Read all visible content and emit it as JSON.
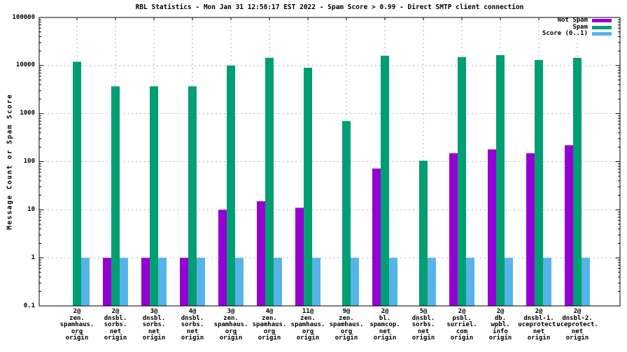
{
  "title": "RBL Statistics - Mon Jan 31 12:58:17 EST 2022 - Spam Score > 0.99 - Direct SMTP client connection",
  "y_axis_title": "Message Count or Spam Score",
  "colors": {
    "not_spam": "#9400d3",
    "spam": "#009e73",
    "score": "#56b4e9",
    "grid": "#b2b2b2",
    "frame": "#000000"
  },
  "chart_data": {
    "type": "bar",
    "title": "RBL Statistics - Mon Jan 31 12:58:17 EST 2022 - Spam Score > 0.99 - Direct SMTP client connection",
    "ylabel": "Message Count or Spam Score",
    "xlabel": "",
    "y_scale": "log",
    "ylim": [
      0.1,
      100000
    ],
    "y_tick_labels": [
      "100000",
      "10000",
      "1000",
      "100",
      "10",
      "1",
      "0.1"
    ],
    "grid": true,
    "legend_position": "top-right",
    "categories": [
      [
        "2@",
        "zen.",
        "spamhaus.",
        "org",
        "origin"
      ],
      [
        "2@",
        "dnsbl.",
        "sorbs.",
        "net",
        "origin"
      ],
      [
        "3@",
        "dnsbl.",
        "sorbs.",
        "net",
        "origin"
      ],
      [
        "4@",
        "dnsbl.",
        "sorbs.",
        "net",
        "origin"
      ],
      [
        "3@",
        "zen.",
        "spamhaus.",
        "org",
        "origin"
      ],
      [
        "4@",
        "zen.",
        "spamhaus.",
        "org",
        "origin"
      ],
      [
        "11@",
        "zen.",
        "spamhaus.",
        "org",
        "origin"
      ],
      [
        "9@",
        "zen.",
        "spamhaus.",
        "org",
        "origin"
      ],
      [
        "2@",
        "bl.",
        "spamcop.",
        "net",
        "origin"
      ],
      [
        "5@",
        "dnsbl.",
        "sorbs.",
        "net",
        "origin"
      ],
      [
        "2@",
        "psbl.",
        "surriel.",
        "com",
        "origin"
      ],
      [
        "2@",
        "db.",
        "wpbl.",
        "info",
        "origin"
      ],
      [
        "2@",
        "dnsbl-1.",
        "uceprotect.",
        "net",
        "origin"
      ],
      [
        "2@",
        "dnsbl-2.",
        "uceprotect.",
        "net",
        "origin"
      ]
    ],
    "series": [
      {
        "name": "Not Spam",
        "color": "#9400d3",
        "values": [
          0,
          1,
          1,
          1,
          10,
          15,
          11,
          0,
          72,
          0,
          150,
          180,
          150,
          220
        ]
      },
      {
        "name": "Spam",
        "color": "#009e73",
        "values": [
          12000,
          3700,
          3700,
          3700,
          10000,
          14500,
          9000,
          700,
          16000,
          105,
          15000,
          16500,
          13000,
          14500
        ]
      },
      {
        "name": "Score (0..1)",
        "color": "#56b4e9",
        "values": [
          1,
          1,
          1,
          1,
          1,
          1,
          1,
          1,
          1,
          1,
          1,
          1,
          1,
          1
        ]
      }
    ]
  }
}
